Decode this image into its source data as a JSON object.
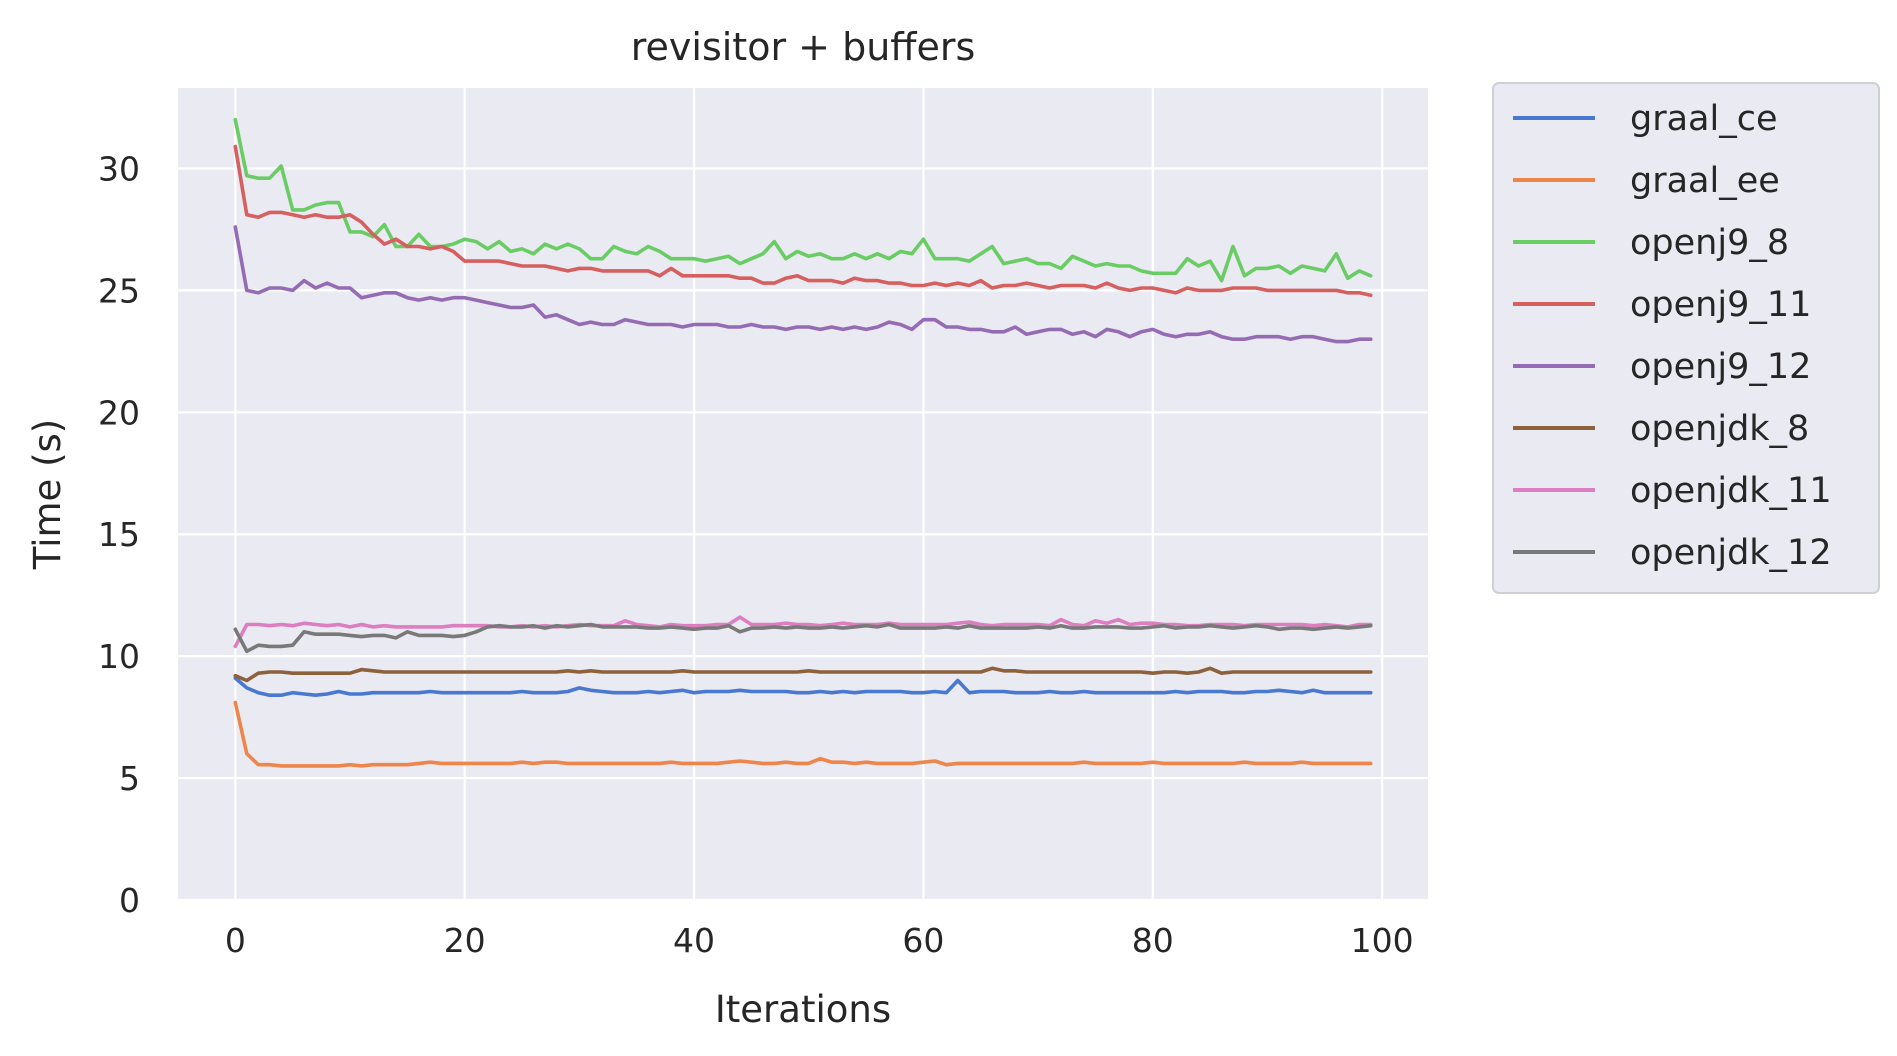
{
  "chart_data": {
    "type": "line",
    "title": "revisitor + buffers",
    "xlabel": "Iterations",
    "ylabel": "Time (s)",
    "xlim": [
      -5,
      104
    ],
    "ylim": [
      0,
      33.3
    ],
    "xticks": [
      0,
      20,
      40,
      60,
      80,
      100
    ],
    "yticks": [
      0,
      5,
      10,
      15,
      20,
      25,
      30
    ],
    "grid": true,
    "legend_position": "outside-right",
    "x_start": 0,
    "x_step": 1,
    "series": [
      {
        "name": "graal_ce",
        "color": "#4878d0",
        "values": [
          9.1,
          8.7,
          8.5,
          8.4,
          8.4,
          8.5,
          8.45,
          8.4,
          8.45,
          8.55,
          8.45,
          8.45,
          8.5,
          8.5,
          8.5,
          8.5,
          8.5,
          8.55,
          8.5,
          8.5,
          8.5,
          8.5,
          8.5,
          8.5,
          8.5,
          8.55,
          8.5,
          8.5,
          8.5,
          8.55,
          8.7,
          8.6,
          8.55,
          8.5,
          8.5,
          8.5,
          8.55,
          8.5,
          8.55,
          8.6,
          8.5,
          8.55,
          8.55,
          8.55,
          8.6,
          8.55,
          8.55,
          8.55,
          8.55,
          8.5,
          8.5,
          8.55,
          8.5,
          8.55,
          8.5,
          8.55,
          8.55,
          8.55,
          8.55,
          8.5,
          8.5,
          8.55,
          8.5,
          9.0,
          8.5,
          8.55,
          8.55,
          8.55,
          8.5,
          8.5,
          8.5,
          8.55,
          8.5,
          8.5,
          8.55,
          8.5,
          8.5,
          8.5,
          8.5,
          8.5,
          8.5,
          8.5,
          8.55,
          8.5,
          8.55,
          8.55,
          8.55,
          8.5,
          8.5,
          8.55,
          8.55,
          8.6,
          8.55,
          8.5,
          8.6,
          8.5,
          8.5,
          8.5,
          8.5,
          8.5
        ]
      },
      {
        "name": "graal_ee",
        "color": "#ee854a",
        "values": [
          8.1,
          6.0,
          5.55,
          5.55,
          5.5,
          5.5,
          5.5,
          5.5,
          5.5,
          5.5,
          5.55,
          5.5,
          5.55,
          5.55,
          5.55,
          5.55,
          5.6,
          5.65,
          5.6,
          5.6,
          5.6,
          5.6,
          5.6,
          5.6,
          5.6,
          5.65,
          5.6,
          5.65,
          5.65,
          5.6,
          5.6,
          5.6,
          5.6,
          5.6,
          5.6,
          5.6,
          5.6,
          5.6,
          5.65,
          5.6,
          5.6,
          5.6,
          5.6,
          5.65,
          5.7,
          5.65,
          5.6,
          5.6,
          5.65,
          5.6,
          5.6,
          5.8,
          5.65,
          5.65,
          5.6,
          5.65,
          5.6,
          5.6,
          5.6,
          5.6,
          5.65,
          5.7,
          5.55,
          5.6,
          5.6,
          5.6,
          5.6,
          5.6,
          5.6,
          5.6,
          5.6,
          5.6,
          5.6,
          5.6,
          5.65,
          5.6,
          5.6,
          5.6,
          5.6,
          5.6,
          5.65,
          5.6,
          5.6,
          5.6,
          5.6,
          5.6,
          5.6,
          5.6,
          5.65,
          5.6,
          5.6,
          5.6,
          5.6,
          5.65,
          5.6,
          5.6,
          5.6,
          5.6,
          5.6,
          5.6
        ]
      },
      {
        "name": "openj9_8",
        "color": "#6acc64",
        "values": [
          32.0,
          29.7,
          29.6,
          29.6,
          30.1,
          28.3,
          28.3,
          28.5,
          28.6,
          28.6,
          27.4,
          27.4,
          27.2,
          27.7,
          26.8,
          26.8,
          27.3,
          26.8,
          26.8,
          26.9,
          27.1,
          27.0,
          26.7,
          27.0,
          26.6,
          26.7,
          26.5,
          26.9,
          26.7,
          26.9,
          26.7,
          26.3,
          26.3,
          26.8,
          26.6,
          26.5,
          26.8,
          26.6,
          26.3,
          26.3,
          26.3,
          26.2,
          26.3,
          26.4,
          26.1,
          26.3,
          26.5,
          27.0,
          26.3,
          26.6,
          26.4,
          26.5,
          26.3,
          26.3,
          26.5,
          26.3,
          26.5,
          26.3,
          26.6,
          26.5,
          27.1,
          26.3,
          26.3,
          26.3,
          26.2,
          26.5,
          26.8,
          26.1,
          26.2,
          26.3,
          26.1,
          26.1,
          25.9,
          26.4,
          26.2,
          26.0,
          26.1,
          26.0,
          26.0,
          25.8,
          25.7,
          25.7,
          25.7,
          26.3,
          26.0,
          26.2,
          25.4,
          26.8,
          25.6,
          25.9,
          25.9,
          26.0,
          25.7,
          26.0,
          25.9,
          25.8,
          26.5,
          25.5,
          25.8,
          25.6
        ]
      },
      {
        "name": "openj9_11",
        "color": "#d65f5f",
        "values": [
          30.9,
          28.1,
          28.0,
          28.2,
          28.2,
          28.1,
          28.0,
          28.1,
          28.0,
          28.0,
          28.1,
          27.8,
          27.3,
          26.9,
          27.1,
          26.8,
          26.8,
          26.7,
          26.8,
          26.6,
          26.2,
          26.2,
          26.2,
          26.2,
          26.1,
          26.0,
          26.0,
          26.0,
          25.9,
          25.8,
          25.9,
          25.9,
          25.8,
          25.8,
          25.8,
          25.8,
          25.8,
          25.6,
          25.9,
          25.6,
          25.6,
          25.6,
          25.6,
          25.6,
          25.5,
          25.5,
          25.3,
          25.3,
          25.5,
          25.6,
          25.4,
          25.4,
          25.4,
          25.3,
          25.5,
          25.4,
          25.4,
          25.3,
          25.3,
          25.2,
          25.2,
          25.3,
          25.2,
          25.3,
          25.2,
          25.4,
          25.1,
          25.2,
          25.2,
          25.3,
          25.2,
          25.1,
          25.2,
          25.2,
          25.2,
          25.1,
          25.3,
          25.1,
          25.0,
          25.1,
          25.1,
          25.0,
          24.9,
          25.1,
          25.0,
          25.0,
          25.0,
          25.1,
          25.1,
          25.1,
          25.0,
          25.0,
          25.0,
          25.0,
          25.0,
          25.0,
          25.0,
          24.9,
          24.9,
          24.8
        ]
      },
      {
        "name": "openj9_12",
        "color": "#956cb4",
        "values": [
          27.6,
          25.0,
          24.9,
          25.1,
          25.1,
          25.0,
          25.4,
          25.1,
          25.3,
          25.1,
          25.1,
          24.7,
          24.8,
          24.9,
          24.9,
          24.7,
          24.6,
          24.7,
          24.6,
          24.7,
          24.7,
          24.6,
          24.5,
          24.4,
          24.3,
          24.3,
          24.4,
          23.9,
          24.0,
          23.8,
          23.6,
          23.7,
          23.6,
          23.6,
          23.8,
          23.7,
          23.6,
          23.6,
          23.6,
          23.5,
          23.6,
          23.6,
          23.6,
          23.5,
          23.5,
          23.6,
          23.5,
          23.5,
          23.4,
          23.5,
          23.5,
          23.4,
          23.5,
          23.4,
          23.5,
          23.4,
          23.5,
          23.7,
          23.6,
          23.4,
          23.8,
          23.8,
          23.5,
          23.5,
          23.4,
          23.4,
          23.3,
          23.3,
          23.5,
          23.2,
          23.3,
          23.4,
          23.4,
          23.2,
          23.3,
          23.1,
          23.4,
          23.3,
          23.1,
          23.3,
          23.4,
          23.2,
          23.1,
          23.2,
          23.2,
          23.3,
          23.1,
          23.0,
          23.0,
          23.1,
          23.1,
          23.1,
          23.0,
          23.1,
          23.1,
          23.0,
          22.9,
          22.9,
          23.0,
          23.0
        ]
      },
      {
        "name": "openjdk_8",
        "color": "#8c613c",
        "values": [
          9.2,
          9.0,
          9.3,
          9.35,
          9.35,
          9.3,
          9.3,
          9.3,
          9.3,
          9.3,
          9.3,
          9.45,
          9.4,
          9.35,
          9.35,
          9.35,
          9.35,
          9.35,
          9.35,
          9.35,
          9.35,
          9.35,
          9.35,
          9.35,
          9.35,
          9.35,
          9.35,
          9.35,
          9.35,
          9.4,
          9.35,
          9.4,
          9.35,
          9.35,
          9.35,
          9.35,
          9.35,
          9.35,
          9.35,
          9.4,
          9.35,
          9.35,
          9.35,
          9.35,
          9.35,
          9.35,
          9.35,
          9.35,
          9.35,
          9.35,
          9.4,
          9.35,
          9.35,
          9.35,
          9.35,
          9.35,
          9.35,
          9.35,
          9.35,
          9.35,
          9.35,
          9.35,
          9.35,
          9.35,
          9.35,
          9.35,
          9.5,
          9.4,
          9.4,
          9.35,
          9.35,
          9.35,
          9.35,
          9.35,
          9.35,
          9.35,
          9.35,
          9.35,
          9.35,
          9.35,
          9.3,
          9.35,
          9.35,
          9.3,
          9.35,
          9.5,
          9.3,
          9.35,
          9.35,
          9.35,
          9.35,
          9.35,
          9.35,
          9.35,
          9.35,
          9.35,
          9.35,
          9.35,
          9.35,
          9.35
        ]
      },
      {
        "name": "openjdk_11",
        "color": "#dc7ec0",
        "values": [
          10.4,
          11.3,
          11.3,
          11.25,
          11.3,
          11.25,
          11.35,
          11.3,
          11.25,
          11.3,
          11.2,
          11.3,
          11.2,
          11.25,
          11.2,
          11.2,
          11.2,
          11.2,
          11.2,
          11.25,
          11.25,
          11.25,
          11.25,
          11.2,
          11.2,
          11.25,
          11.2,
          11.25,
          11.2,
          11.25,
          11.3,
          11.25,
          11.25,
          11.25,
          11.45,
          11.3,
          11.25,
          11.2,
          11.3,
          11.25,
          11.25,
          11.25,
          11.3,
          11.3,
          11.6,
          11.3,
          11.3,
          11.3,
          11.35,
          11.3,
          11.3,
          11.25,
          11.3,
          11.35,
          11.3,
          11.3,
          11.3,
          11.35,
          11.3,
          11.3,
          11.3,
          11.3,
          11.3,
          11.35,
          11.4,
          11.3,
          11.25,
          11.3,
          11.3,
          11.3,
          11.3,
          11.25,
          11.5,
          11.3,
          11.25,
          11.45,
          11.35,
          11.5,
          11.3,
          11.35,
          11.35,
          11.3,
          11.3,
          11.25,
          11.25,
          11.3,
          11.3,
          11.3,
          11.25,
          11.3,
          11.3,
          11.3,
          11.3,
          11.3,
          11.25,
          11.3,
          11.25,
          11.2,
          11.3,
          11.3
        ]
      },
      {
        "name": "openjdk_12",
        "color": "#797979",
        "values": [
          11.1,
          10.2,
          10.45,
          10.4,
          10.4,
          10.45,
          11.0,
          10.9,
          10.9,
          10.9,
          10.85,
          10.8,
          10.85,
          10.85,
          10.75,
          11.0,
          10.85,
          10.85,
          10.85,
          10.8,
          10.85,
          11.0,
          11.2,
          11.25,
          11.2,
          11.2,
          11.25,
          11.15,
          11.25,
          11.2,
          11.25,
          11.3,
          11.2,
          11.2,
          11.2,
          11.2,
          11.15,
          11.15,
          11.2,
          11.15,
          11.1,
          11.15,
          11.15,
          11.25,
          11.0,
          11.15,
          11.15,
          11.2,
          11.15,
          11.2,
          11.15,
          11.15,
          11.2,
          11.15,
          11.2,
          11.25,
          11.2,
          11.3,
          11.15,
          11.15,
          11.15,
          11.15,
          11.2,
          11.15,
          11.25,
          11.15,
          11.15,
          11.15,
          11.15,
          11.15,
          11.2,
          11.15,
          11.25,
          11.15,
          11.15,
          11.2,
          11.2,
          11.2,
          11.15,
          11.15,
          11.2,
          11.25,
          11.15,
          11.2,
          11.2,
          11.25,
          11.2,
          11.15,
          11.2,
          11.25,
          11.2,
          11.1,
          11.15,
          11.15,
          11.1,
          11.15,
          11.2,
          11.15,
          11.2,
          11.25
        ]
      }
    ]
  }
}
